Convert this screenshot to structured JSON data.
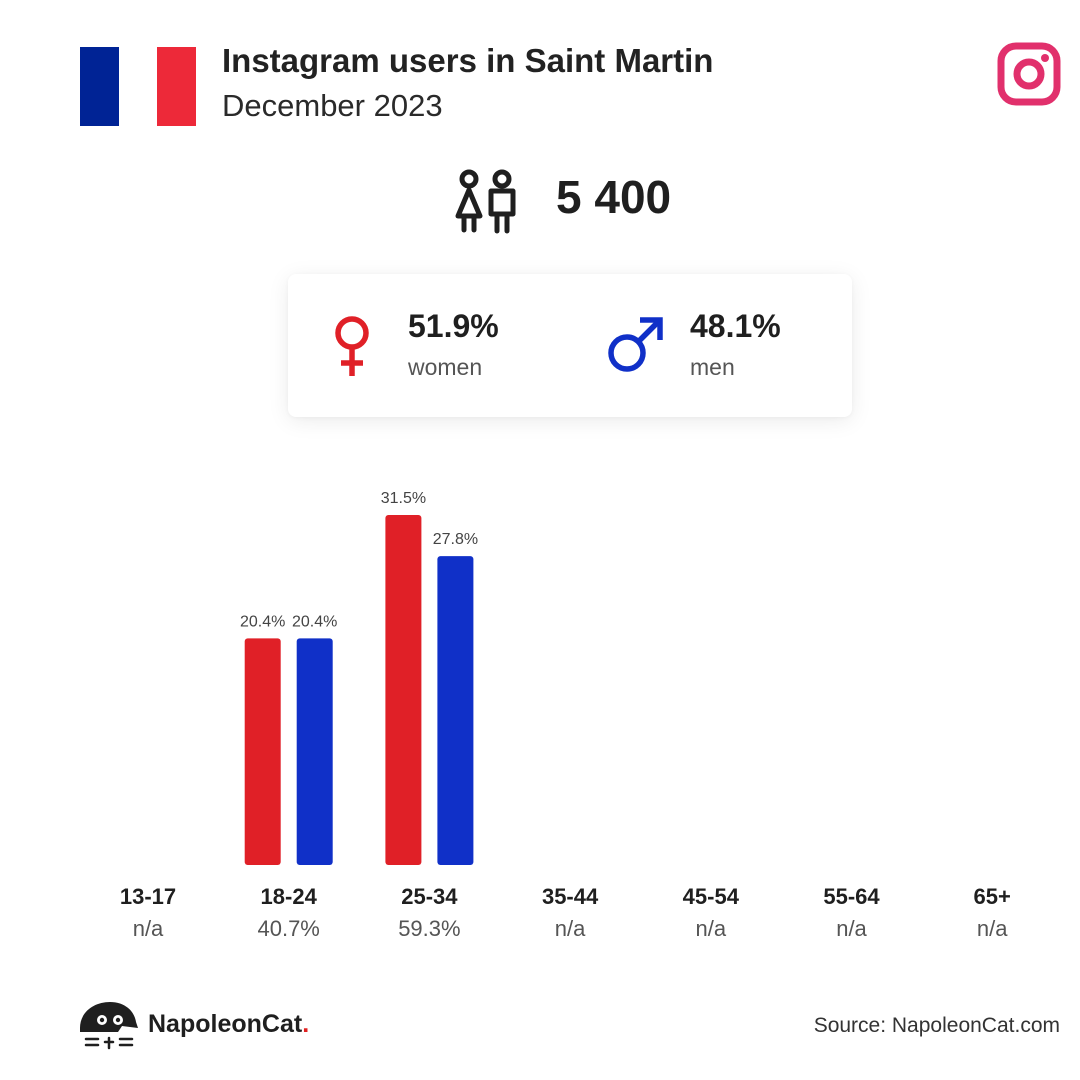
{
  "header": {
    "title": "Instagram users in Saint Martin",
    "subtitle": "December 2023",
    "flag_colors": [
      "#002395",
      "#ffffff",
      "#ed2939"
    ],
    "brand_icon": "instagram-icon",
    "brand_color": "#e1306c"
  },
  "total": {
    "icon": "people-icon",
    "value": "5 400"
  },
  "gender": {
    "women": {
      "icon": "female-symbol-icon",
      "percent": "51.9%",
      "label": "women",
      "color": "#e02027"
    },
    "men": {
      "icon": "male-symbol-icon",
      "percent": "48.1%",
      "label": "men",
      "color": "#1030c8"
    }
  },
  "chart_data": {
    "type": "bar",
    "categories": [
      "13-17",
      "18-24",
      "25-34",
      "35-44",
      "45-54",
      "55-64",
      "65+"
    ],
    "category_shares": [
      "n/a",
      "40.7%",
      "59.3%",
      "n/a",
      "n/a",
      "n/a",
      "n/a"
    ],
    "series": [
      {
        "color": "#e02027",
        "values": [
          null,
          20.4,
          31.5,
          null,
          null,
          null,
          null
        ],
        "labels": [
          "",
          "20.4%",
          "31.5%",
          "",
          "",
          "",
          ""
        ]
      },
      {
        "color": "#1030c8",
        "values": [
          null,
          20.4,
          27.8,
          null,
          null,
          null,
          null
        ],
        "labels": [
          "",
          "20.4%",
          "27.8%",
          "",
          "",
          "",
          ""
        ]
      }
    ],
    "ylim": [
      0,
      31.5
    ],
    "grid": false,
    "legend": "none"
  },
  "footer": {
    "logo_icon": "napoleoncat-logo-icon",
    "logo_text": "NapoleonCat",
    "logo_dot": ".",
    "source": "Source: NapoleonCat.com"
  }
}
